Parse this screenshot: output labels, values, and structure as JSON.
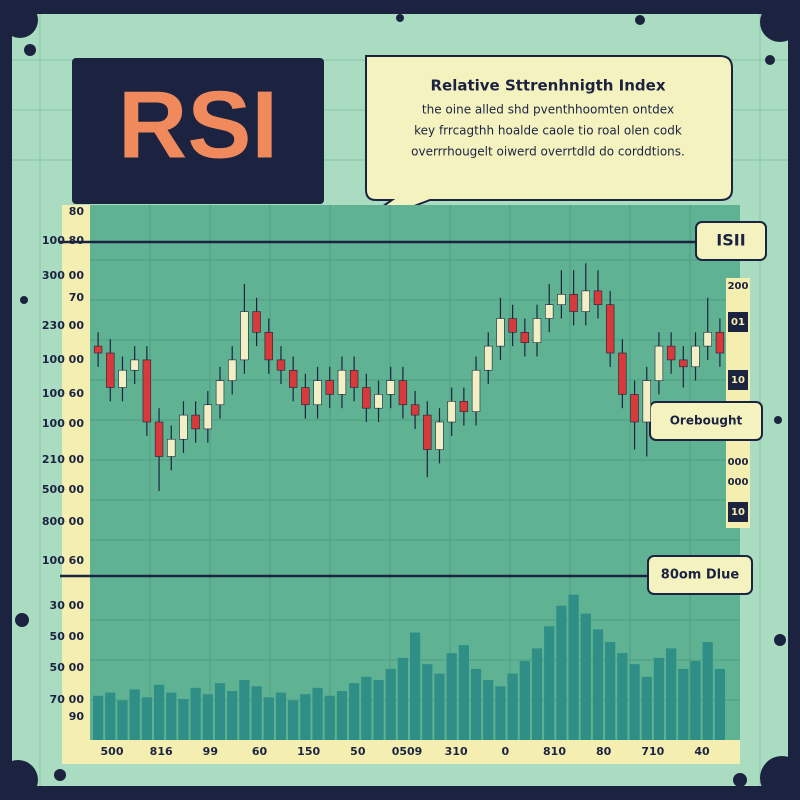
{
  "chart_data": {
    "type": "candlestick",
    "title": "RSI",
    "callout": {
      "title": "Relative Sttrenhnigth Index",
      "lines": [
        "the oine alled shd pventhhoomten ontdex",
        "key frrcagthh hoalde caole tio roal olen codk",
        "overrrhougelt oiwerd overrtdld do corddtions."
      ]
    },
    "open": [
      62,
      60,
      50,
      55,
      58,
      40,
      30,
      35,
      42,
      38,
      45,
      52,
      58,
      72,
      66,
      58,
      55,
      50,
      45,
      52,
      48,
      55,
      50,
      44,
      48,
      52,
      45,
      42,
      32,
      40,
      46,
      43,
      55,
      62,
      70,
      66,
      63,
      70,
      74,
      77,
      72,
      78,
      74,
      60,
      48,
      40,
      52,
      62,
      58,
      56,
      62,
      66
    ],
    "high": [
      66,
      64,
      59,
      62,
      62,
      44,
      39,
      46,
      46,
      49,
      56,
      62,
      80,
      76,
      70,
      62,
      59,
      54,
      56,
      56,
      59,
      59,
      54,
      52,
      56,
      56,
      49,
      46,
      44,
      50,
      50,
      59,
      66,
      76,
      74,
      70,
      74,
      80,
      84,
      84,
      86,
      84,
      78,
      64,
      52,
      56,
      66,
      66,
      62,
      66,
      76,
      70
    ],
    "low": [
      56,
      46,
      46,
      51,
      36,
      20,
      26,
      31,
      34,
      34,
      41,
      48,
      54,
      62,
      54,
      51,
      46,
      41,
      41,
      44,
      44,
      46,
      40,
      40,
      44,
      41,
      38,
      24,
      28,
      36,
      39,
      39,
      51,
      58,
      62,
      59,
      59,
      66,
      70,
      68,
      68,
      70,
      56,
      44,
      32,
      30,
      48,
      54,
      50,
      52,
      58,
      56
    ],
    "close": [
      60,
      50,
      55,
      58,
      40,
      30,
      35,
      42,
      38,
      45,
      52,
      58,
      72,
      66,
      58,
      55,
      50,
      45,
      52,
      48,
      55,
      50,
      44,
      48,
      52,
      45,
      42,
      32,
      40,
      46,
      43,
      55,
      62,
      70,
      66,
      63,
      70,
      74,
      77,
      72,
      78,
      74,
      60,
      48,
      40,
      52,
      62,
      58,
      56,
      62,
      66,
      60
    ],
    "volume": [
      28,
      30,
      25,
      32,
      27,
      35,
      30,
      26,
      33,
      29,
      36,
      31,
      38,
      34,
      27,
      30,
      25,
      29,
      33,
      28,
      31,
      36,
      40,
      38,
      45,
      52,
      68,
      48,
      42,
      55,
      60,
      45,
      38,
      34,
      42,
      50,
      58,
      72,
      85,
      92,
      80,
      70,
      62,
      55,
      48,
      40,
      52,
      58,
      45,
      50,
      62,
      45
    ],
    "ylim": [
      0,
      100
    ],
    "volume_ylim": [
      0,
      100
    ],
    "up_color": "#f3efc4",
    "down_color": "#d8393a",
    "volume_color": "#2f8f86",
    "ytick_labels": [
      "80",
      "100 80",
      "300 00",
      "70",
      "230 00",
      "100 00",
      "100 60",
      "100 00",
      "210 00",
      "500 00",
      "800 00",
      "100 60"
    ],
    "volume_ytick_labels": [
      "30 00",
      "50 00",
      "50 00",
      "70 00",
      "90"
    ],
    "xtick_labels": [
      "500",
      "816",
      "99",
      "60",
      "150",
      "50",
      "0509",
      "310",
      "0",
      "810",
      "80",
      "710",
      "40"
    ],
    "right_labels": [
      "200",
      "01",
      "10",
      "000",
      "000",
      "10"
    ],
    "tags": [
      "ISII",
      "Orebought",
      "80om Dlue"
    ]
  }
}
